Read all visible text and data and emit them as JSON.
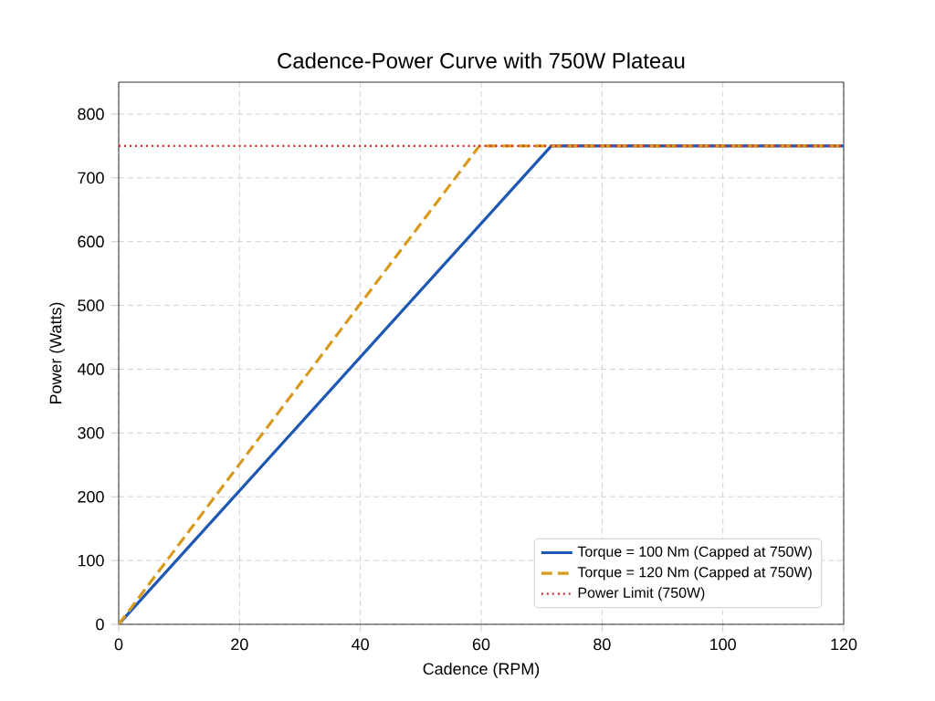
{
  "chart_data": {
    "type": "line",
    "title": "Cadence-Power Curve with 750W Plateau",
    "xlabel": "Cadence (RPM)",
    "ylabel": "Power (Watts)",
    "series": [
      {
        "name": "Torque = 100 Nm (Capped at 750W)",
        "color": "#1f57b4",
        "line_style": "solid",
        "x": [
          0,
          71.6,
          120
        ],
        "values": [
          0,
          750,
          750
        ]
      },
      {
        "name": "Torque = 120 Nm (Capped at 750W)",
        "color": "#d89a1c",
        "line_style": "dashed",
        "x": [
          0,
          59.7,
          120
        ],
        "values": [
          0,
          750,
          750
        ]
      }
    ],
    "ref_lines": [
      {
        "axis": "y",
        "value": 750,
        "label": "Power Limit (750W)",
        "color": "#d62728",
        "line_style": "dotted"
      }
    ],
    "xlim": [
      0,
      120
    ],
    "ylim": [
      0,
      850
    ],
    "xticks": [
      0,
      20,
      40,
      60,
      80,
      100,
      120
    ],
    "yticks": [
      0,
      100,
      200,
      300,
      400,
      500,
      600,
      700,
      800
    ],
    "grid": true,
    "legend": "bottom right",
    "marker": "none"
  }
}
